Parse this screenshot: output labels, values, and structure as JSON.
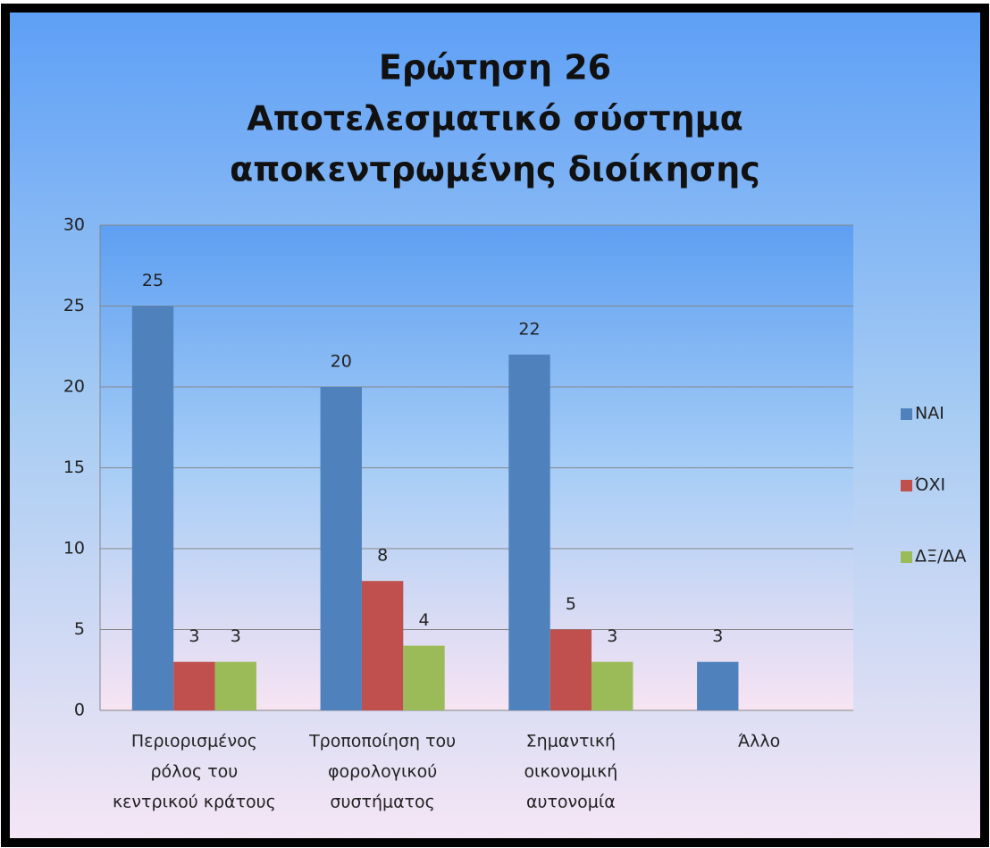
{
  "chart_data": {
    "type": "bar",
    "title": [
      "Ερώτηση 26",
      "Αποτελεσματικό σύστημα",
      "αποκεντρωμένης διοίκησης"
    ],
    "categories": [
      [
        "Περιορισμένος",
        "ρόλος του",
        "κεντρικού κράτους"
      ],
      [
        "Τροποποίηση του",
        "φορολογικού",
        "συστήματος"
      ],
      [
        "Σημαντική",
        "οικονομική",
        "αυτονομία"
      ],
      [
        "Άλλο"
      ]
    ],
    "series": [
      {
        "name": "ΝΑΙ",
        "color": "#4f81bd",
        "values": [
          25,
          20,
          22,
          3
        ]
      },
      {
        "name": "ΌΧΙ",
        "color": "#c0504d",
        "values": [
          3,
          8,
          5,
          null
        ]
      },
      {
        "name": "ΔΞ/ΔΑ",
        "color": "#9bbb59",
        "values": [
          3,
          4,
          3,
          null
        ]
      }
    ],
    "ylim": [
      0,
      30
    ],
    "yticks": [
      0,
      5,
      10,
      15,
      20,
      25,
      30
    ],
    "grid": true,
    "legend": "right"
  }
}
